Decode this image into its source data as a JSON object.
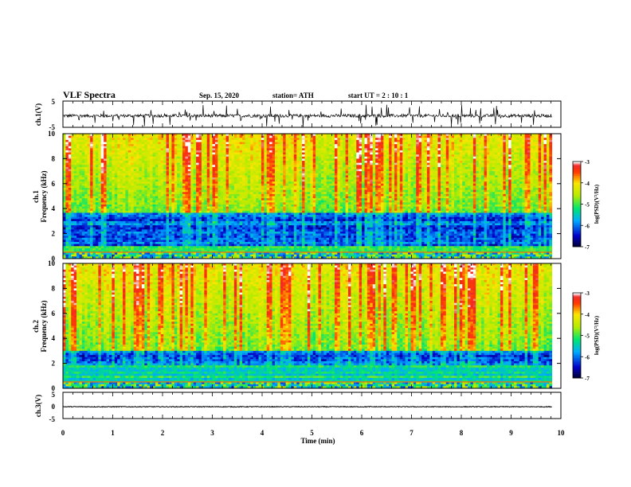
{
  "header": {
    "title": "VLF Spectra",
    "date": "Sep. 15, 2020",
    "station": "station= ATH",
    "start": "start  UT =   2 : 10 : 1"
  },
  "chart_data": [
    {
      "type": "line",
      "name": "waveform-ch1",
      "ylabel": "ch.1(V)",
      "ylim": [
        -5,
        5
      ],
      "yticks": [
        "5",
        "-5"
      ],
      "xlim": [
        0,
        10
      ],
      "data_xmax": 9.82,
      "baseline": -0.6,
      "noise_amplitude": 1.2
    },
    {
      "type": "heatmap",
      "name": "spectrogram-ch1",
      "ylabel": "ch.1\nFrequency (kHz)",
      "ylim": [
        0,
        10
      ],
      "yticks": [
        "0",
        "2",
        "4",
        "6",
        "8",
        "10"
      ],
      "xlim": [
        0,
        10
      ],
      "data_xmax": 9.82,
      "colorbar": {
        "label": "log(PSD)(V²/Hz)",
        "range": [
          -7,
          -3
        ],
        "ticks": [
          "-3",
          "-4",
          "-5",
          "-6",
          "-7"
        ]
      }
    },
    {
      "type": "heatmap",
      "name": "spectrogram-ch2",
      "ylabel": "ch.2\nFrequency (kHz)",
      "ylim": [
        0,
        10
      ],
      "yticks": [
        "0",
        "2",
        "4",
        "6",
        "8",
        "10"
      ],
      "xlim": [
        0,
        10
      ],
      "data_xmax": 9.82,
      "colorbar": {
        "label": "log(PSD)(V²/Hz)",
        "range": [
          -7,
          -3
        ],
        "ticks": [
          "-3",
          "-4",
          "-5",
          "-6",
          "-7"
        ]
      }
    },
    {
      "type": "line",
      "name": "waveform-ch3",
      "ylabel": "ch.3(V)",
      "ylim": [
        -5,
        5
      ],
      "yticks": [
        "5",
        "0",
        "-5"
      ],
      "xlim": [
        0,
        10
      ],
      "data_xmax": 9.82,
      "baseline": -0.5,
      "noise_amplitude": 0.3
    }
  ],
  "xaxis": {
    "label": "Time  (min)",
    "ticks": [
      "0",
      "1",
      "2",
      "3",
      "4",
      "5",
      "6",
      "7",
      "8",
      "9",
      "10"
    ]
  }
}
